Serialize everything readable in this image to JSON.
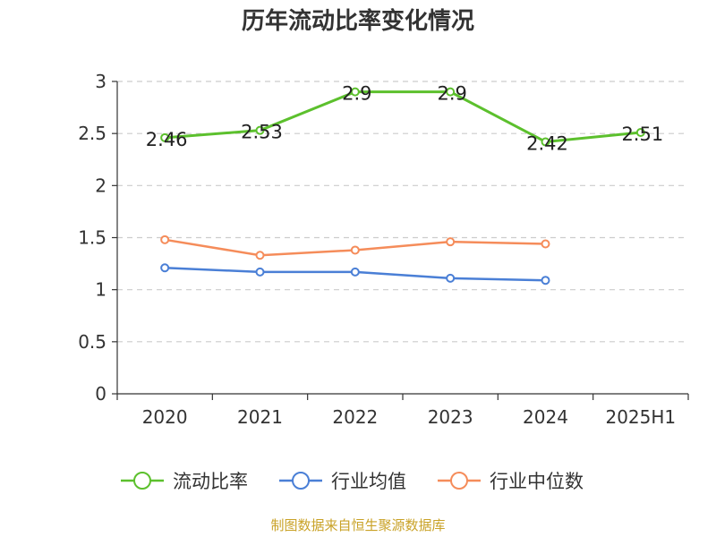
{
  "chart_data": {
    "type": "line",
    "title": "历年流动比率变化情况",
    "categories": [
      "2020",
      "2021",
      "2022",
      "2023",
      "2024",
      "2025H1"
    ],
    "ylim": [
      0,
      3
    ],
    "yticks": [
      "0",
      "0.5",
      "1",
      "1.5",
      "2",
      "2.5",
      "3"
    ],
    "ytick_values": [
      0,
      0.5,
      1,
      1.5,
      2,
      2.5,
      3
    ],
    "grid": "horizontal-dashed",
    "legend_position": "bottom",
    "series": [
      {
        "name": "流动比率",
        "color": "#5cc02d",
        "values": [
          2.46,
          2.53,
          2.9,
          2.9,
          2.42,
          2.51
        ],
        "labels": [
          "2.46",
          "2.53",
          "2.9",
          "2.9",
          "2.42",
          "2.51"
        ]
      },
      {
        "name": "行业均值",
        "color": "#4a7fd6",
        "values": [
          1.21,
          1.17,
          1.17,
          1.11,
          1.09,
          null
        ]
      },
      {
        "name": "行业中位数",
        "color": "#f58c5a",
        "values": [
          1.48,
          1.33,
          1.38,
          1.46,
          1.44,
          null
        ]
      }
    ]
  },
  "footer": {
    "source": "制图数据来自恒生聚源数据库"
  }
}
